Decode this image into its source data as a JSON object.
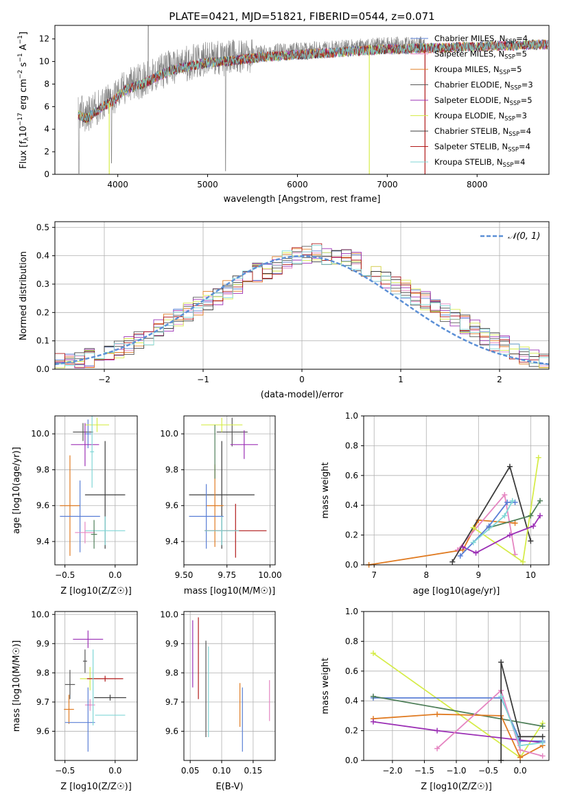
{
  "colors": {
    "blue": "#5a7fd6",
    "orange": "#e07b22",
    "gray": "#555555",
    "purple": "#9b2fb5",
    "yellow": "#d6ec4a",
    "darkgray": "#3b3b3b",
    "red": "#b01818",
    "cyan": "#7fd6d6",
    "pink": "#e585c1",
    "green": "#4f7f59",
    "spec": "#808080",
    "grid": "#b0b0b0"
  },
  "chart_data": [
    {
      "id": "spectrum",
      "type": "line",
      "title": "PLATE=0421, MJD=51821, FIBERID=0544, z=0.071",
      "xlabel": "wavelength [Angstrom, rest frame]",
      "ylabel": "Flux [fλ10⁻¹⁷ erg cm⁻² s⁻¹ A⁻¹]",
      "xlim": [
        3300,
        8800
      ],
      "ylim": [
        0,
        13.2
      ],
      "grid": false,
      "xticks": [
        4000,
        5000,
        6000,
        7000,
        8000
      ],
      "yticks": [
        0,
        2,
        4,
        6,
        8,
        10,
        12
      ],
      "legend_position": "right",
      "continuum": {
        "x": [
          3560,
          3650,
          3750,
          3850,
          3950,
          4050,
          4150,
          4300,
          4450,
          4600,
          4800,
          5000,
          5200,
          5400,
          5600,
          5800,
          6000,
          6200,
          6400,
          6600,
          6800,
          7000,
          7200,
          7400,
          7600,
          7800,
          8000,
          8200,
          8400,
          8600,
          8800
        ],
        "y": [
          5.6,
          5.2,
          5.8,
          6.4,
          6.8,
          7.6,
          8.0,
          8.4,
          9.0,
          9.5,
          9.9,
          10.2,
          10.3,
          10.5,
          10.7,
          10.8,
          10.9,
          11.0,
          11.1,
          11.2,
          11.3,
          11.4,
          11.4,
          11.5,
          11.5,
          11.6,
          11.6,
          11.7,
          11.7,
          11.8,
          11.8
        ]
      },
      "series": [
        {
          "name": "Chabrier MILES, N_SSP=4",
          "color": "#5a7fd6"
        },
        {
          "name": "Salpeter MILES, N_SSP=5",
          "color": "#e585c1"
        },
        {
          "name": "Kroupa MILES, N_SSP=5",
          "color": "#e07b22"
        },
        {
          "name": "Chabrier ELODIE, N_SSP=3",
          "color": "#555555"
        },
        {
          "name": "Salpeter ELODIE, N_SSP=5",
          "color": "#9b2fb5"
        },
        {
          "name": "Kroupa ELODIE, N_SSP=3",
          "color": "#d6ec4a"
        },
        {
          "name": "Chabrier STELIB, N_SSP=4",
          "color": "#3b3b3b"
        },
        {
          "name": "Salpeter STELIB, N_SSP=4",
          "color": "#b01818"
        },
        {
          "name": "Kroupa STELIB, N_SSP=4",
          "color": "#7fd6d6"
        }
      ]
    },
    {
      "id": "residuals",
      "type": "bar",
      "xlabel": "(data-model)/error",
      "ylabel": "Normed distribution",
      "xlim": [
        -2.5,
        2.5
      ],
      "ylim": [
        0,
        0.52
      ],
      "grid": true,
      "xticks": [
        -2,
        -1,
        0,
        1,
        2
      ],
      "yticks": [
        0.0,
        0.1,
        0.2,
        0.3,
        0.4,
        0.5
      ],
      "legend_position": "top-right",
      "gaussian": {
        "name": "𝒩(0, 1)",
        "mean": 0,
        "sigma": 1,
        "color": "#5b8fd6"
      },
      "bin_edges_start": -2.5,
      "bin_width": 0.1,
      "base_histogram": [
        0.022,
        0.025,
        0.03,
        0.04,
        0.05,
        0.06,
        0.07,
        0.085,
        0.1,
        0.12,
        0.14,
        0.16,
        0.18,
        0.2,
        0.22,
        0.24,
        0.26,
        0.28,
        0.3,
        0.32,
        0.34,
        0.35,
        0.37,
        0.39,
        0.4,
        0.4,
        0.41,
        0.4,
        0.4,
        0.39,
        0.38,
        0.36,
        0.34,
        0.32,
        0.3,
        0.28,
        0.26,
        0.24,
        0.22,
        0.2,
        0.18,
        0.16,
        0.14,
        0.12,
        0.1,
        0.085,
        0.07,
        0.05,
        0.035,
        0.02
      ],
      "series_colors": [
        "#5a7fd6",
        "#e585c1",
        "#e07b22",
        "#555555",
        "#9b2fb5",
        "#d6ec4a",
        "#3b3b3b",
        "#b01818",
        "#7fd6d6"
      ]
    },
    {
      "id": "age_vs_Z",
      "type": "scatter",
      "xlabel": "Z [log10(Z/Z☉)]",
      "ylabel": "age  [log10(age/yr)]",
      "xlim": [
        -0.6,
        0.22
      ],
      "ylim": [
        9.27,
        10.1
      ],
      "grid": true,
      "xticks": [
        -0.5,
        0.0
      ],
      "yticks": [
        9.4,
        9.6,
        9.8,
        10.0
      ],
      "points": [
        {
          "x": -0.32,
          "y": 10.01,
          "xerr": 0.1,
          "yerr": 0.05,
          "color": "#555555"
        },
        {
          "x": -0.27,
          "y": 10.0,
          "xerr": 0.03,
          "yerr": 0.08,
          "color": "#5a7fd6"
        },
        {
          "x": -0.18,
          "y": 10.05,
          "xerr": 0.12,
          "yerr": 0.04,
          "color": "#d6ec4a"
        },
        {
          "x": -0.3,
          "y": 9.94,
          "xerr": 0.14,
          "yerr": 0.12,
          "color": "#9b2fb5"
        },
        {
          "x": -0.1,
          "y": 9.66,
          "xerr": 0.2,
          "yerr": 0.3,
          "color": "#3b3b3b"
        },
        {
          "x": -0.45,
          "y": 9.6,
          "xerr": 0.1,
          "yerr": 0.28,
          "color": "#e07b22"
        },
        {
          "x": -0.35,
          "y": 9.54,
          "xerr": 0.2,
          "yerr": 0.2,
          "color": "#5a7fd6"
        },
        {
          "x": -0.1,
          "y": 9.46,
          "xerr": 0.2,
          "yerr": 0.08,
          "color": "#7fd6d6"
        },
        {
          "x": -0.3,
          "y": 9.45,
          "xerr": 0.1,
          "yerr": 0.06,
          "color": "#e585c1"
        },
        {
          "x": -0.21,
          "y": 9.44,
          "xerr": 0.03,
          "yerr": 0.08,
          "color": "#4f7f59"
        },
        {
          "x": -0.23,
          "y": 9.9,
          "xerr": 0.02,
          "yerr": 0.2,
          "color": "#7fd6d6"
        }
      ]
    },
    {
      "id": "age_vs_mass",
      "type": "scatter",
      "xlabel": "mass [log10(M/M☉)]",
      "xlim": [
        9.5,
        10.03
      ],
      "ylim": [
        9.27,
        10.1
      ],
      "grid": true,
      "xticks": [
        9.5,
        9.75,
        10.0
      ],
      "yticks": [
        9.4,
        9.6,
        9.8,
        10.0
      ],
      "points": [
        {
          "x": 9.78,
          "y": 10.01,
          "xerr": 0.09,
          "yerr": 0.08,
          "color": "#555555"
        },
        {
          "x": 9.72,
          "y": 10.05,
          "xerr": 0.12,
          "yerr": 0.04,
          "color": "#d6ec4a"
        },
        {
          "x": 9.85,
          "y": 9.94,
          "xerr": 0.08,
          "yerr": 0.08,
          "color": "#9b2fb5"
        },
        {
          "x": 9.72,
          "y": 9.66,
          "xerr": 0.19,
          "yerr": 0.3,
          "color": "#3b3b3b"
        },
        {
          "x": 9.68,
          "y": 9.6,
          "xerr": 0.05,
          "yerr": 0.23,
          "color": "#e07b22"
        },
        {
          "x": 9.63,
          "y": 9.54,
          "xerr": 0.1,
          "yerr": 0.18,
          "color": "#5a7fd6"
        },
        {
          "x": 9.8,
          "y": 9.46,
          "xerr": 0.18,
          "yerr": 0.15,
          "color": "#b01818"
        },
        {
          "x": 9.72,
          "y": 9.46,
          "xerr": 0.1,
          "yerr": 0.08,
          "color": "#7fd6d6"
        },
        {
          "x": 9.68,
          "y": 9.9,
          "xerr": 0.0,
          "yerr": 0.15,
          "color": "#4f7f59"
        }
      ]
    },
    {
      "id": "massweight_vs_age",
      "type": "line",
      "xlabel": "age  [log10(age/yr)]",
      "ylabel": "mass weight",
      "xlim": [
        6.8,
        10.35
      ],
      "ylim": [
        0,
        1.0
      ],
      "grid": true,
      "xticks": [
        7,
        8,
        9,
        10
      ],
      "yticks": [
        0.0,
        0.2,
        0.4,
        0.6,
        0.8,
        1.0
      ],
      "series": [
        {
          "color": "#e07b22",
          "x": [
            6.9,
            8.7,
            9.0,
            9.7
          ],
          "y": [
            0.0,
            0.1,
            0.3,
            0.28
          ]
        },
        {
          "color": "#e585c1",
          "x": [
            8.6,
            9.5,
            9.7
          ],
          "y": [
            0.1,
            0.47,
            0.07
          ]
        },
        {
          "color": "#3b3b3b",
          "x": [
            8.5,
            9.6,
            10.0
          ],
          "y": [
            0.02,
            0.66,
            0.16
          ]
        },
        {
          "color": "#d6ec4a",
          "x": [
            8.9,
            9.85,
            10.15
          ],
          "y": [
            0.25,
            0.02,
            0.72
          ]
        },
        {
          "color": "#9b2fb5",
          "x": [
            8.7,
            8.95,
            9.6,
            10.05,
            10.18
          ],
          "y": [
            0.12,
            0.08,
            0.2,
            0.26,
            0.33
          ]
        },
        {
          "color": "#4f7f59",
          "x": [
            9.2,
            10.0,
            10.18
          ],
          "y": [
            0.25,
            0.33,
            0.43
          ]
        },
        {
          "color": "#5a7fd6",
          "x": [
            8.65,
            9.2,
            9.55,
            9.7
          ],
          "y": [
            0.06,
            0.26,
            0.42,
            0.42
          ]
        },
        {
          "color": "#7fd6d6",
          "x": [
            8.9,
            9.5,
            9.65
          ],
          "y": [
            0.15,
            0.33,
            0.43
          ]
        }
      ]
    },
    {
      "id": "mass_vs_Z",
      "type": "scatter",
      "xlabel": "Z [log10(Z/Z☉)]",
      "ylabel": "mass [log10(M/M☉)]",
      "xlim": [
        -0.6,
        0.22
      ],
      "ylim": [
        9.5,
        10.01
      ],
      "grid": true,
      "xticks": [
        -0.5,
        0.0
      ],
      "yticks": [
        9.6,
        9.7,
        9.8,
        9.9,
        10.0
      ],
      "points": [
        {
          "x": -0.27,
          "y": 9.915,
          "xerr": 0.15,
          "yerr": 0.03,
          "color": "#9b2fb5"
        },
        {
          "x": -0.3,
          "y": 9.84,
          "xerr": 0.02,
          "yerr": 0.04,
          "color": "#555555"
        },
        {
          "x": -0.25,
          "y": 9.78,
          "xerr": 0.1,
          "yerr": 0.04,
          "color": "#d6ec4a"
        },
        {
          "x": -0.1,
          "y": 9.78,
          "xerr": 0.18,
          "yerr": 0.01,
          "color": "#b01818"
        },
        {
          "x": -0.45,
          "y": 9.76,
          "xerr": 0.05,
          "yerr": 0.05,
          "color": "#555555"
        },
        {
          "x": -0.05,
          "y": 9.715,
          "xerr": 0.16,
          "yerr": 0.01,
          "color": "#3b3b3b"
        },
        {
          "x": -0.25,
          "y": 9.69,
          "xerr": 0.05,
          "yerr": 0.02,
          "color": "#e585c1"
        },
        {
          "x": -0.46,
          "y": 9.675,
          "xerr": 0.05,
          "yerr": 0.05,
          "color": "#e07b22"
        },
        {
          "x": -0.05,
          "y": 9.655,
          "xerr": 0.15,
          "yerr": 0.0,
          "color": "#7fd6d6"
        },
        {
          "x": -0.35,
          "y": 9.63,
          "xerr": 0.15,
          "yerr": 0.0,
          "color": "#5a7fd6"
        },
        {
          "x": -0.27,
          "y": 9.64,
          "xerr": 0.0,
          "yerr": 0.11,
          "color": "#5a7fd6"
        },
        {
          "x": -0.22,
          "y": 9.75,
          "xerr": 0.0,
          "yerr": 0.13,
          "color": "#7fd6d6"
        }
      ]
    },
    {
      "id": "mass_vs_ebv",
      "type": "scatter",
      "xlabel": "E(B-V)",
      "xlim": [
        0.04,
        0.185
      ],
      "ylim": [
        9.5,
        10.01
      ],
      "grid": true,
      "xticks": [
        0.05,
        0.1,
        0.15
      ],
      "yticks": [
        9.6,
        9.7,
        9.8,
        9.9,
        10.0
      ],
      "points": [
        {
          "x": 0.054,
          "y": 9.865,
          "yerr": 0.115,
          "color": "#9b2fb5"
        },
        {
          "x": 0.063,
          "y": 9.85,
          "yerr": 0.14,
          "color": "#b01818"
        },
        {
          "x": 0.075,
          "y": 9.745,
          "yerr": 0.165,
          "color": "#555555"
        },
        {
          "x": 0.079,
          "y": 9.735,
          "yerr": 0.155,
          "color": "#7fd6d6"
        },
        {
          "x": 0.129,
          "y": 9.69,
          "yerr": 0.075,
          "color": "#e07b22"
        },
        {
          "x": 0.133,
          "y": 9.64,
          "yerr": 0.11,
          "color": "#5a7fd6"
        },
        {
          "x": 0.176,
          "y": 9.705,
          "yerr": 0.07,
          "color": "#e585c1"
        }
      ]
    },
    {
      "id": "massweight_vs_Z",
      "type": "line",
      "xlabel": "Z [log10(Z/Z☉)]",
      "ylabel": "mass weight",
      "xlim": [
        -2.45,
        0.45
      ],
      "ylim": [
        0,
        1.0
      ],
      "grid": true,
      "xticks": [
        -2.0,
        -1.5,
        -1.0,
        -0.5,
        0.0
      ],
      "yticks": [
        0.0,
        0.2,
        0.4,
        0.6,
        0.8,
        1.0
      ],
      "series": [
        {
          "color": "#d6ec4a",
          "x": [
            -2.3,
            0.0,
            0.35
          ],
          "y": [
            0.72,
            0.02,
            0.25
          ]
        },
        {
          "color": "#5a7fd6",
          "x": [
            -2.3,
            -0.3,
            0.0,
            0.35
          ],
          "y": [
            0.42,
            0.42,
            0.13,
            0.13
          ]
        },
        {
          "color": "#4f7f59",
          "x": [
            -2.3,
            0.35
          ],
          "y": [
            0.43,
            0.23
          ]
        },
        {
          "color": "#e07b22",
          "x": [
            -2.3,
            -1.3,
            -0.3,
            0.0,
            0.35
          ],
          "y": [
            0.28,
            0.31,
            0.3,
            0.02,
            0.1
          ]
        },
        {
          "color": "#9b2fb5",
          "x": [
            -2.3,
            -1.3,
            0.35
          ],
          "y": [
            0.26,
            0.2,
            0.12
          ]
        },
        {
          "color": "#e585c1",
          "x": [
            -1.3,
            -0.3,
            0.0,
            0.35
          ],
          "y": [
            0.08,
            0.47,
            0.07,
            0.03
          ]
        },
        {
          "color": "#3b3b3b",
          "x": [
            -0.3,
            -0.3,
            0.0,
            0.35
          ],
          "y": [
            0.0,
            0.66,
            0.16,
            0.16
          ]
        },
        {
          "color": "#7fd6d6",
          "x": [
            -0.3,
            0.0,
            0.35
          ],
          "y": [
            0.43,
            0.1,
            0.12
          ]
        }
      ]
    }
  ]
}
